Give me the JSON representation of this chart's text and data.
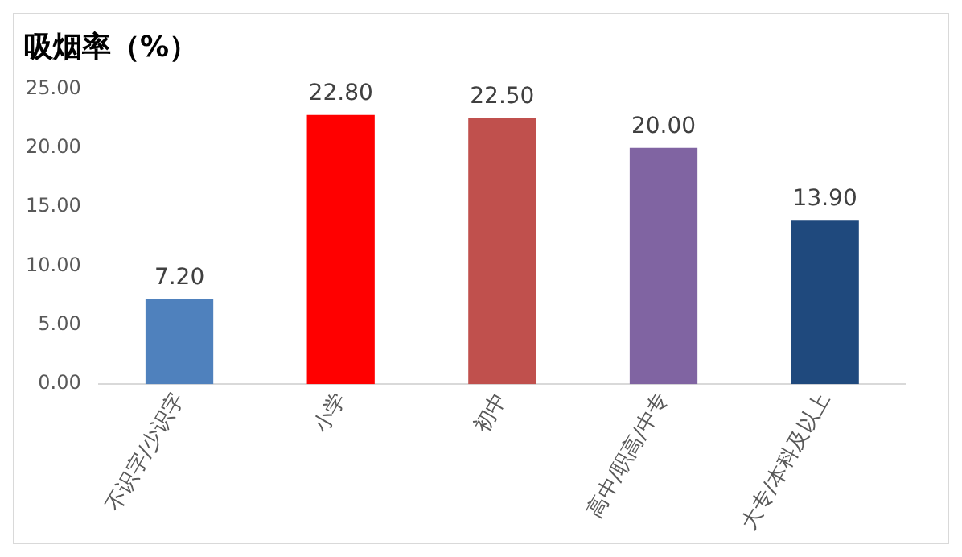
{
  "chart_data": {
    "type": "bar",
    "title": "吸烟率（%）",
    "categories": [
      "不识字/少识字",
      "小学",
      "初中",
      "高中/职高/中专",
      "大专/本科及以上"
    ],
    "values": [
      7.2,
      22.8,
      22.5,
      20.0,
      13.9
    ],
    "colors": [
      "#4f81bd",
      "#ff0000",
      "#c0504d",
      "#8064a2",
      "#1f497d"
    ],
    "value_labels": [
      "7.20",
      "22.80",
      "22.50",
      "20.00",
      "13.90"
    ],
    "ylim": [
      0,
      25
    ],
    "yticks": [
      {
        "value": 0,
        "label": "0.00"
      },
      {
        "value": 5,
        "label": "5.00"
      },
      {
        "value": 10,
        "label": "10.00"
      },
      {
        "value": 15,
        "label": "15.00"
      },
      {
        "value": 20,
        "label": "20.00"
      },
      {
        "value": 25,
        "label": "25.00"
      }
    ],
    "grid": false,
    "legend": false
  }
}
